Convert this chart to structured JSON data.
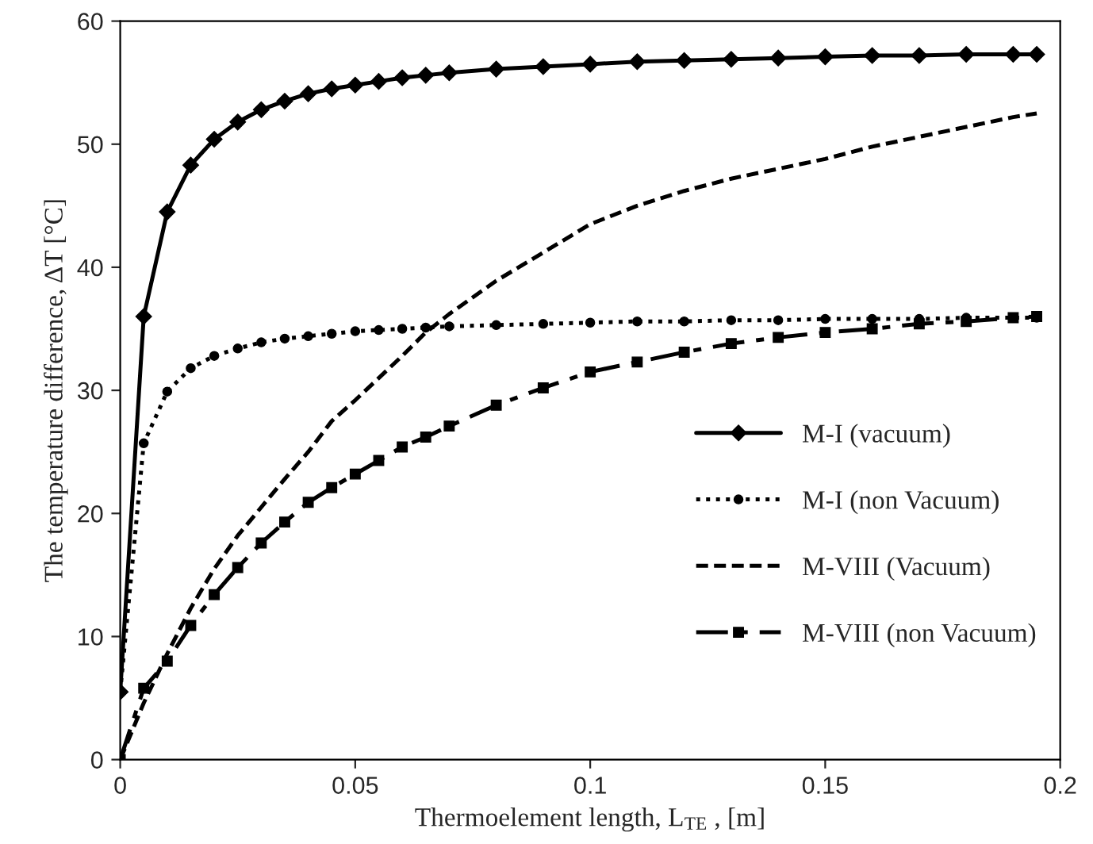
{
  "chart_data": {
    "type": "line",
    "xlabel": "Thermoelement length, L$_{TE}$ , [m]",
    "ylabel": "The temperature difference, ΔT [°C]",
    "x": [
      0,
      0.005,
      0.01,
      0.015,
      0.02,
      0.025,
      0.03,
      0.035,
      0.04,
      0.045,
      0.05,
      0.055,
      0.06,
      0.065,
      0.07,
      0.08,
      0.09,
      0.1,
      0.11,
      0.12,
      0.13,
      0.14,
      0.15,
      0.16,
      0.17,
      0.18,
      0.19,
      0.195
    ],
    "xlim": [
      0,
      0.2
    ],
    "xticks": [
      0,
      0.05,
      0.1,
      0.15,
      0.2
    ],
    "ylim": [
      0,
      60
    ],
    "yticks": [
      0,
      10,
      20,
      30,
      40,
      50,
      60
    ],
    "grid": false,
    "legend": "right",
    "series": [
      {
        "name": "M-I (vacuum)",
        "color": "#000000",
        "line_style": "solid",
        "marker": "diamond",
        "values": [
          5.5,
          36,
          44.5,
          48.3,
          50.4,
          51.8,
          52.8,
          53.5,
          54.1,
          54.5,
          54.8,
          55.1,
          55.4,
          55.6,
          55.8,
          56.1,
          56.3,
          56.5,
          56.7,
          56.8,
          56.9,
          57.0,
          57.1,
          57.2,
          57.2,
          57.3,
          57.3,
          57.3
        ]
      },
      {
        "name": "M-I (non Vacuum)",
        "color": "#000000",
        "line_style": "dotted",
        "marker": "circle",
        "values": [
          5.5,
          25.7,
          29.9,
          31.8,
          32.8,
          33.4,
          33.9,
          34.2,
          34.4,
          34.6,
          34.8,
          34.9,
          35.0,
          35.1,
          35.2,
          35.3,
          35.4,
          35.5,
          35.6,
          35.6,
          35.7,
          35.7,
          35.8,
          35.8,
          35.8,
          35.9,
          35.9,
          35.9
        ]
      },
      {
        "name": "M-VIII (Vacuum)",
        "color": "#000000",
        "line_style": "dashed",
        "marker": "none",
        "values": [
          0,
          4.6,
          8.6,
          12.3,
          15.5,
          18.2,
          20.5,
          22.8,
          25,
          27.5,
          29.2,
          31,
          32.8,
          34.7,
          36.2,
          38.9,
          41.2,
          43.5,
          45,
          46.2,
          47.2,
          48,
          48.8,
          49.8,
          50.6,
          51.4,
          52.2,
          52.5
        ]
      },
      {
        "name": "M-VIII (non Vacuum)",
        "color": "#000000",
        "line_style": "dashdot",
        "marker": "square",
        "values": [
          0,
          5.8,
          8.0,
          10.9,
          13.4,
          15.6,
          17.6,
          19.3,
          20.9,
          22.1,
          23.2,
          24.3,
          25.4,
          26.2,
          27.1,
          28.8,
          30.2,
          31.5,
          32.3,
          33.1,
          33.8,
          34.3,
          34.7,
          35.0,
          35.4,
          35.6,
          35.9,
          36.0
        ]
      }
    ]
  }
}
